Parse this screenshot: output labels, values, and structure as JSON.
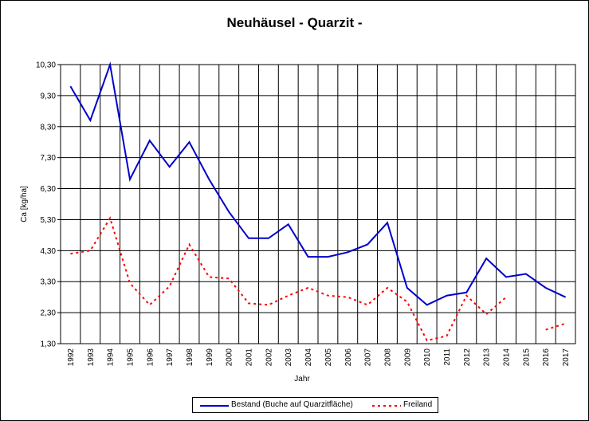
{
  "chart_data": {
    "type": "line",
    "title": "Neuhäusel - Quarzit -",
    "xlabel": "Jahr",
    "ylabel": "Ca [kg/ha]",
    "ylim": [
      1.3,
      10.3
    ],
    "yticks": [
      "1,30",
      "2,30",
      "3,30",
      "4,30",
      "5,30",
      "6,30",
      "7,30",
      "8,30",
      "9,30",
      "10,30"
    ],
    "ytick_values": [
      1.3,
      2.3,
      3.3,
      4.3,
      5.3,
      6.3,
      7.3,
      8.3,
      9.3,
      10.3
    ],
    "x": [
      "1992",
      "1993",
      "1994",
      "1995",
      "1996",
      "1997",
      "1998",
      "1999",
      "2000",
      "2001",
      "2002",
      "2003",
      "2004",
      "2005",
      "2006",
      "2007",
      "2008",
      "2009",
      "2010",
      "2011",
      "2012",
      "2013",
      "2014",
      "2015",
      "2016",
      "2017"
    ],
    "grid": true,
    "legend_position": "bottom",
    "series": [
      {
        "name": "Bestand (Buche auf Quarzitfläche)",
        "color": "#0000cc",
        "style": "solid",
        "values": [
          9.6,
          8.5,
          10.3,
          6.6,
          7.85,
          7.0,
          7.8,
          6.6,
          5.55,
          4.7,
          4.7,
          5.15,
          4.1,
          4.1,
          4.25,
          4.5,
          5.2,
          3.1,
          2.55,
          2.85,
          2.95,
          4.05,
          3.45,
          3.55,
          3.1,
          2.8
        ]
      },
      {
        "name": "Freiland",
        "color": "#ff0000",
        "style": "dotted",
        "values": [
          4.2,
          4.3,
          5.35,
          3.25,
          2.55,
          3.15,
          4.5,
          3.45,
          3.4,
          2.6,
          2.55,
          2.85,
          3.1,
          2.85,
          2.8,
          2.55,
          3.1,
          2.65,
          1.4,
          1.55,
          2.85,
          2.25,
          2.8,
          null,
          1.75,
          1.95
        ]
      }
    ]
  }
}
